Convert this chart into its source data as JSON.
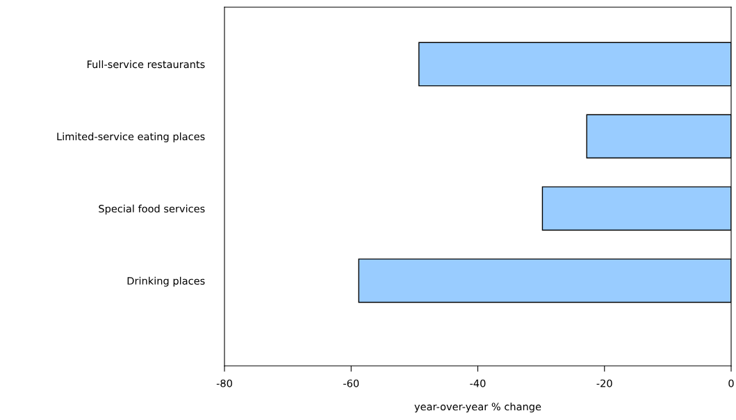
{
  "chart_data": {
    "type": "bar",
    "orientation": "horizontal",
    "xlabel": "year-over-year % change",
    "categories": [
      "Full-service restaurants",
      "Limited-service eating places",
      "Special food services",
      "Drinking places"
    ],
    "values": [
      -49.3,
      -22.8,
      -29.8,
      -58.8
    ],
    "color": "#99ccff",
    "xlim": [
      -80,
      0
    ],
    "xticks": [
      -80,
      -60,
      -40,
      -20,
      0
    ],
    "grid": false,
    "legend": false
  }
}
